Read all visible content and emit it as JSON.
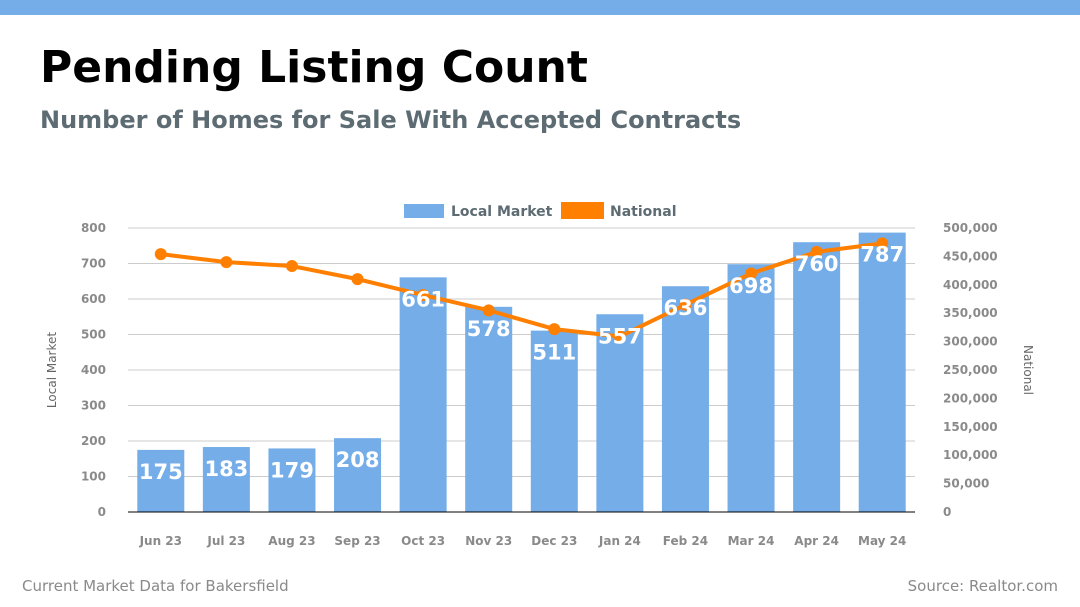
{
  "header": {
    "title": "Pending Listing Count",
    "subtitle": "Number of Homes for Sale With Accepted Contracts"
  },
  "footer": {
    "left": "Current Market Data for Bakersfield",
    "right": "Source: Realtor.com"
  },
  "colors": {
    "top_bar": "#74ade8",
    "bar": "#74ade8",
    "line": "#ff8000",
    "grid": "#cccccc"
  },
  "chart_data": {
    "type": "bar",
    "categories": [
      "Jun 23",
      "Jul 23",
      "Aug 23",
      "Sep 23",
      "Oct 23",
      "Nov 23",
      "Dec 23",
      "Jan 24",
      "Feb 24",
      "Mar 24",
      "Apr 24",
      "May 24"
    ],
    "series": [
      {
        "name": "Local Market",
        "type": "bar",
        "axis": "left",
        "values": [
          175,
          183,
          179,
          208,
          661,
          578,
          511,
          557,
          636,
          698,
          760,
          787
        ],
        "data_labels": [
          "175",
          "183",
          "179",
          "208",
          "661",
          "578",
          "511",
          "557",
          "636",
          "698",
          "760",
          "787"
        ]
      },
      {
        "name": "National",
        "type": "line",
        "axis": "right",
        "values": [
          454000,
          440000,
          433000,
          410000,
          382000,
          355000,
          322000,
          309000,
          365000,
          420000,
          458000,
          473000
        ]
      }
    ],
    "ylabel": "Local Market",
    "y2label": "National",
    "ylim": [
      0,
      800
    ],
    "y2lim": [
      0,
      500000
    ],
    "yticks": [
      "0",
      "100",
      "200",
      "300",
      "400",
      "500",
      "600",
      "700",
      "800"
    ],
    "y2ticks": [
      "0",
      "50,000",
      "100,000",
      "150,000",
      "200,000",
      "250,000",
      "300,000",
      "350,000",
      "400,000",
      "450,000",
      "500,000"
    ],
    "grid": true,
    "legend": "top-center"
  }
}
